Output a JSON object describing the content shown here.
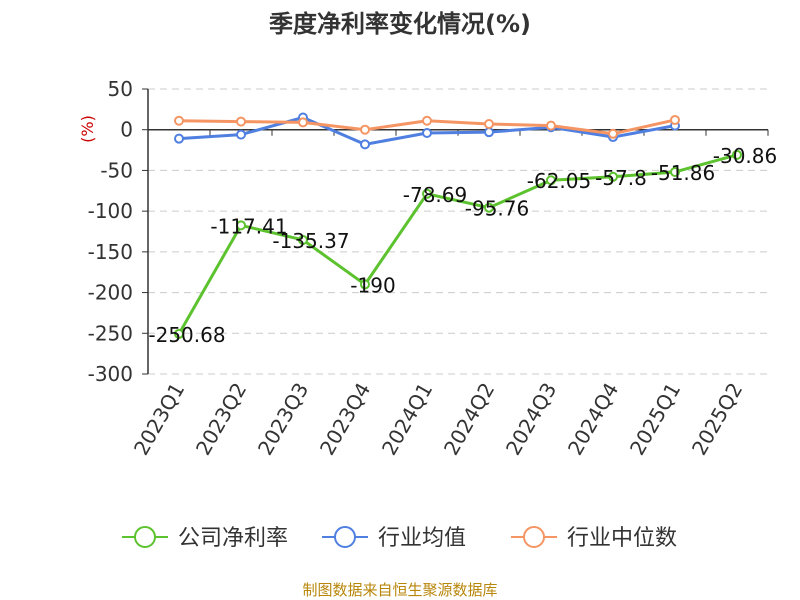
{
  "chart_data": {
    "type": "line",
    "title": "季度净利率变化情况(%)",
    "ylabel": "(%)",
    "ylim": [
      -300,
      50
    ],
    "yticks": [
      50,
      0,
      -50,
      -100,
      -150,
      -200,
      -250,
      -300
    ],
    "categories": [
      "2023Q1",
      "2023Q2",
      "2023Q3",
      "2023Q4",
      "2024Q1",
      "2024Q2",
      "2024Q3",
      "2024Q4",
      "2025Q1",
      "2025Q2"
    ],
    "grid": true,
    "legend_position": "bottom",
    "series": [
      {
        "name": "公司净利率",
        "color": "#5cc22e",
        "values": [
          -250.68,
          -117.41,
          -135.37,
          -190,
          -78.69,
          -95.76,
          -62.05,
          -57.8,
          -51.86,
          -30.86
        ],
        "labels": [
          "-250.68",
          "-117.41",
          "-135.37",
          "-190",
          "-78.69",
          "-95.76",
          "-62.05",
          "-57.8",
          "-51.86",
          "-30.86"
        ]
      },
      {
        "name": "行业均值",
        "color": "#4f7fe0",
        "values": [
          -11,
          -6,
          15,
          -18,
          -4,
          -3,
          3,
          -9,
          5,
          null
        ]
      },
      {
        "name": "行业中位数",
        "color": "#f59563",
        "values": [
          11,
          10,
          9,
          0,
          11,
          7,
          5,
          -5,
          12,
          null
        ]
      }
    ]
  },
  "source": "制图数据来自恒生聚源数据库"
}
